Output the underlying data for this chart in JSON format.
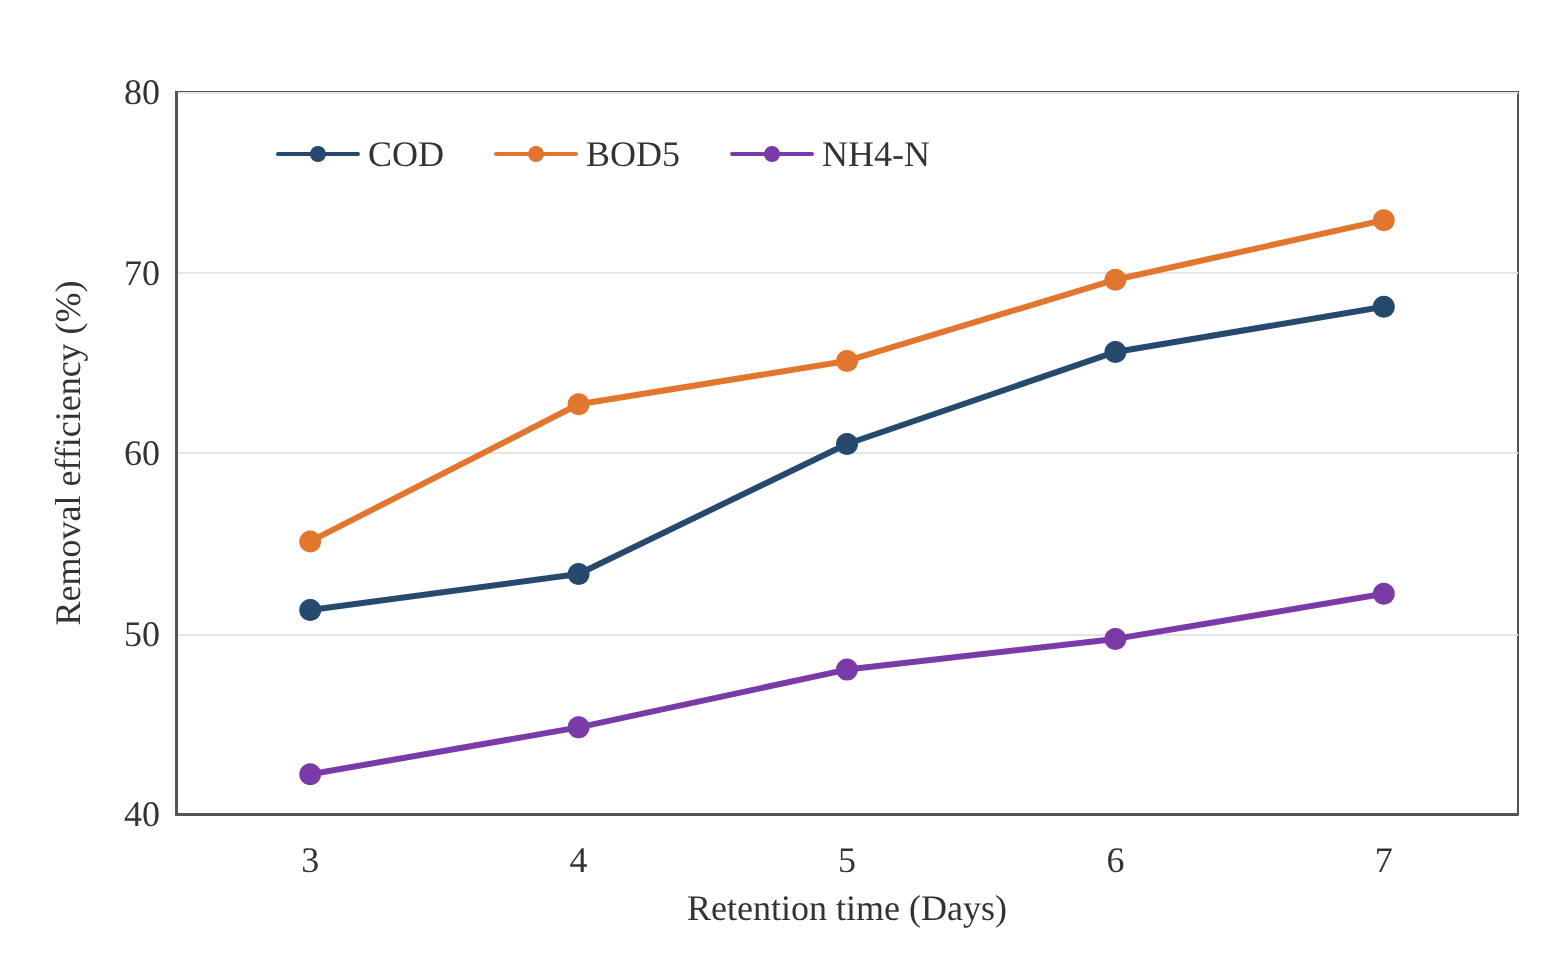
{
  "chart_data": {
    "type": "line",
    "xlabel": "Retention time (Days)",
    "ylabel": "Removal efficiency (%)",
    "categories": [
      "3",
      "4",
      "5",
      "6",
      "7"
    ],
    "series": [
      {
        "name": "COD",
        "color": "#264a6e",
        "values": [
          51.3,
          53.3,
          60.5,
          65.6,
          68.1
        ]
      },
      {
        "name": "BOD5",
        "color": "#e2762e",
        "values": [
          55.1,
          62.7,
          65.1,
          69.6,
          72.9
        ]
      },
      {
        "name": "NH4-N",
        "color": "#7a3aa8",
        "values": [
          42.2,
          44.8,
          48.0,
          49.7,
          52.2
        ]
      }
    ],
    "ylim": [
      40,
      80
    ],
    "yticks": [
      40,
      50,
      60,
      70,
      80
    ],
    "grid": "y",
    "legend": "top left",
    "marker": "circle",
    "line_style": "solid"
  }
}
